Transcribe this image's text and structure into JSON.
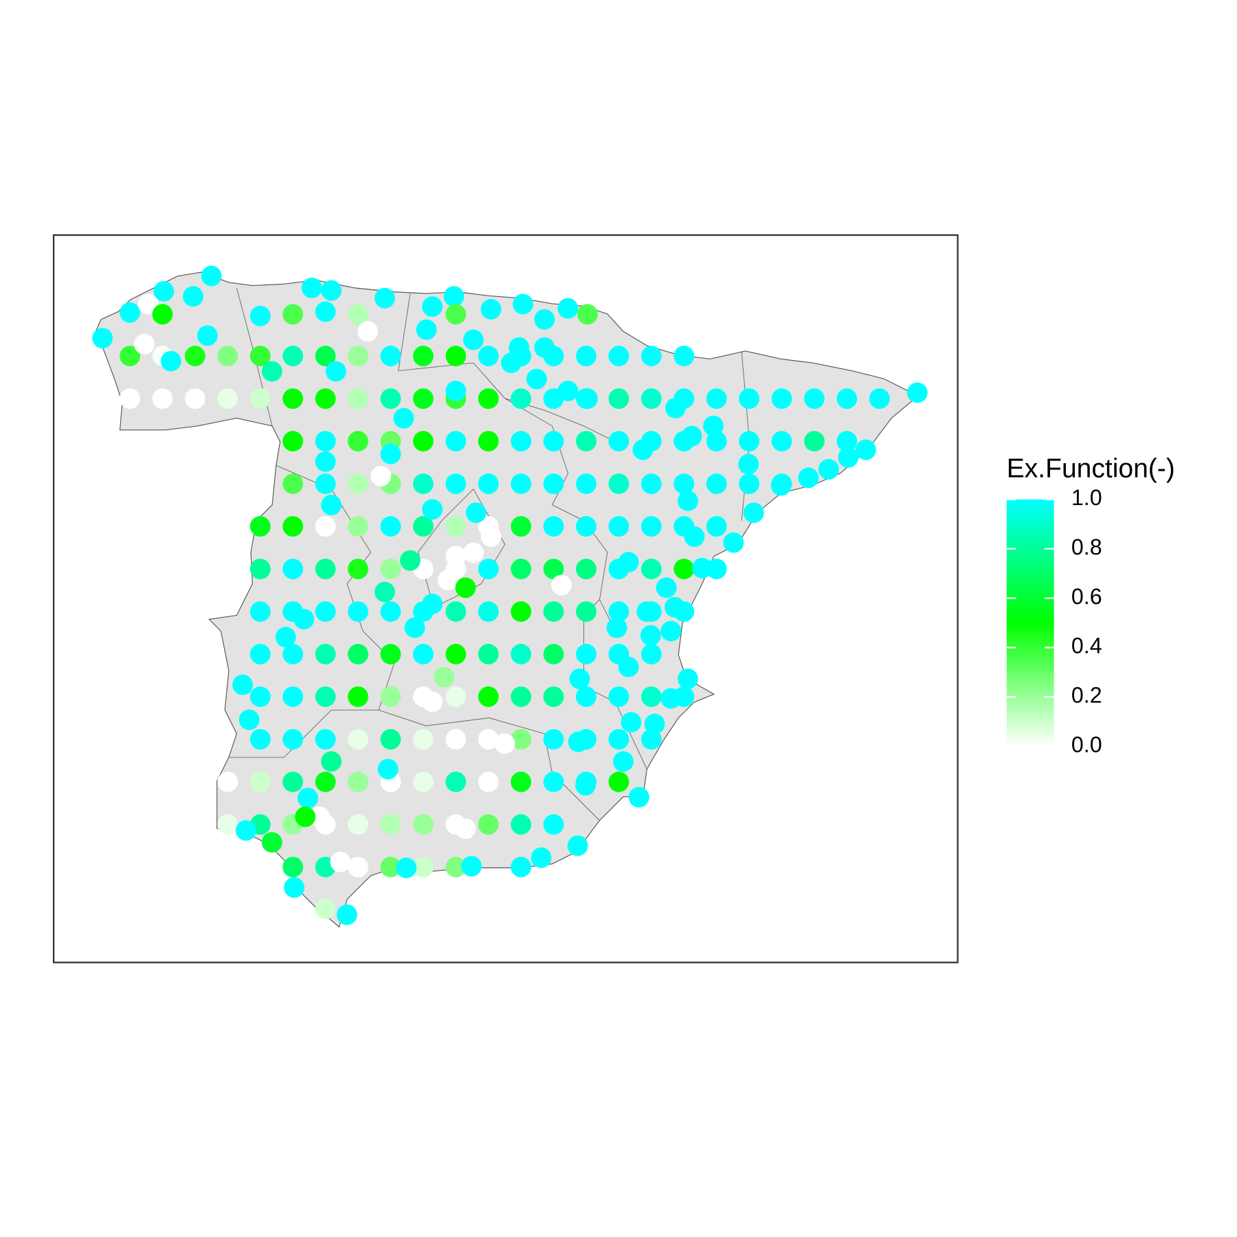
{
  "chart_data": {
    "type": "scatter",
    "xlim": [
      -9.92,
      3.95
    ],
    "ylim": [
      35.63,
      44.17
    ],
    "colorbar": {
      "title": "Ex.Function(-)",
      "limits": [
        0,
        1
      ],
      "colors": [
        "#ffffff",
        "#00ff00",
        "#00ffff"
      ],
      "ticks": [
        {
          "value": 0,
          "label": "0.0"
        },
        0.2,
        0.4,
        0.6,
        0.8,
        {
          "value": 1,
          "label": "1.0"
        }
      ]
    },
    "x": [
      -8.75,
      -8.25,
      -7.75,
      -7.25,
      -6.75,
      -6.25,
      -5.75,
      -5.25,
      -4.75,
      -4.25,
      -3.75,
      -3.25,
      -2.75,
      -2.25,
      -1.75,
      -1.25,
      -0.75,
      -0.25,
      -8.75,
      -8.25,
      -7.75,
      -7.25,
      -6.75,
      -6.25,
      -5.75,
      -5.25,
      -4.75,
      -4.25,
      -3.75,
      -3.25,
      -2.75,
      -2.25,
      -1.75,
      -1.25,
      -0.75,
      -0.25,
      0.25,
      0.75,
      1.25,
      1.75,
      2.25,
      2.75,
      -6.25,
      -5.75,
      -5.25,
      -4.75,
      -4.25,
      -3.75,
      -3.25,
      -2.75,
      -2.25,
      -1.75,
      -1.25,
      -0.75,
      -0.25,
      0.25,
      0.75,
      1.25,
      1.75,
      2.25,
      -6.25,
      -5.75,
      -5.25,
      -4.75,
      -4.25,
      -3.75,
      -3.25,
      -2.75,
      -2.25,
      -1.75,
      -1.25,
      -0.75,
      -0.25,
      0.25,
      0.75,
      1.25,
      -6.75,
      -6.25,
      -5.75,
      -5.25,
      -4.75,
      -4.25,
      -3.75,
      -3.25,
      -2.75,
      -2.25,
      -1.75,
      -1.25,
      -0.75,
      -0.25,
      0.25,
      -6.75,
      -6.25,
      -5.75,
      -5.25,
      -4.75,
      -4.25,
      -3.75,
      -3.25,
      -2.75,
      -2.25,
      -1.75,
      -1.25,
      -0.75,
      -0.25,
      0.25,
      -6.75,
      -6.25,
      -5.75,
      -5.25,
      -4.75,
      -4.25,
      -3.75,
      -3.25,
      -2.75,
      -2.25,
      -1.75,
      -1.25,
      -0.75,
      -0.25,
      -6.75,
      -6.25,
      -5.75,
      -5.25,
      -4.75,
      -4.25,
      -3.75,
      -3.25,
      -2.75,
      -2.25,
      -1.75,
      -1.25,
      -0.75,
      -6.75,
      -6.25,
      -5.75,
      -5.25,
      -4.75,
      -4.25,
      -3.75,
      -3.25,
      -2.75,
      -2.25,
      -1.75,
      -1.25,
      -0.75,
      -0.25,
      -6.75,
      -6.25,
      -5.75,
      -5.25,
      -4.75,
      -4.25,
      -3.75,
      -3.25,
      -2.75,
      -2.25,
      -1.75,
      -1.25,
      -0.75,
      -7.25,
      -6.75,
      -6.25,
      -5.75,
      -5.25,
      -4.75,
      -4.25,
      -3.75,
      -3.25,
      -2.75,
      -2.25,
      -1.75,
      -1.25,
      -7.25,
      -6.75,
      -6.25,
      -5.75,
      -5.25,
      -4.75,
      -4.25,
      -3.75,
      -3.25,
      -2.75,
      -2.25,
      -6.25,
      -5.75,
      -5.25,
      -4.75,
      -4.25,
      -3.75,
      -2.75,
      -9.17,
      -8.75,
      -8.23,
      -7.78,
      -7.5,
      -8.47,
      -8.25,
      -8.53,
      -8.12,
      -7.56,
      -6.75,
      -6.25,
      -5.96,
      -5.66,
      -5.75,
      -5.25,
      -5.1,
      -4.84,
      -4.2,
      -4.11,
      -3.78,
      -3.75,
      -3.48,
      -3.21,
      -2.72,
      -2.39,
      -2.03,
      -1.73,
      -2.78,
      -2.39,
      -2.9,
      -2.51,
      -2.03,
      -1.73,
      -6.57,
      -5.59,
      -3.75,
      -4.55,
      -5.75,
      -4.75,
      -4.9,
      -5.66,
      -4.11,
      -3.44,
      -3.21,
      -3.48,
      -3.75,
      -3.87,
      -3.6,
      -4.45,
      -4.84,
      -4.38,
      -4.11,
      -2.13,
      -1.1,
      -0.52,
      0.03,
      -0.82,
      -0.39,
      -0.45,
      -1.28,
      -1.1,
      -0.76,
      -0.19,
      -0.45,
      -1.06,
      -0.7,
      -1.18,
      -0.94,
      -1.87,
      -6.08,
      -6.36,
      -7.02,
      -6.92,
      -5.66,
      -4.79,
      -6.02,
      -5.84,
      -6.06,
      -6.97,
      -6.57,
      -6.23,
      -5.75,
      -5.42,
      -5.52,
      -4.51,
      -3.51,
      -2.44,
      -1.88,
      -3.6,
      -3.93,
      -4.11,
      -3,
      -0.19,
      -0.09,
      0.51,
      0.82,
      1.24,
      1.66,
      1.97,
      2.27,
      2.54,
      0.2,
      -0.13,
      -0.88,
      -0.38,
      0.74,
      3.33,
      -1.85,
      -1.76
    ],
    "y": [
      42.75,
      42.75,
      42.75,
      42.75,
      42.75,
      42.75,
      42.75,
      42.75,
      42.75,
      42.75,
      42.75,
      42.75,
      42.75,
      42.75,
      42.75,
      42.75,
      42.75,
      42.75,
      42.25,
      42.25,
      42.25,
      42.25,
      42.25,
      42.25,
      42.25,
      42.25,
      42.25,
      42.25,
      42.25,
      42.25,
      42.25,
      42.25,
      42.25,
      42.25,
      42.25,
      42.25,
      42.25,
      42.25,
      42.25,
      42.25,
      42.25,
      42.25,
      41.75,
      41.75,
      41.75,
      41.75,
      41.75,
      41.75,
      41.75,
      41.75,
      41.75,
      41.75,
      41.75,
      41.75,
      41.75,
      41.75,
      41.75,
      41.75,
      41.75,
      41.75,
      41.25,
      41.25,
      41.25,
      41.25,
      41.25,
      41.25,
      41.25,
      41.25,
      41.25,
      41.25,
      41.25,
      41.25,
      41.25,
      41.25,
      41.25,
      41.25,
      40.75,
      40.75,
      40.75,
      40.75,
      40.75,
      40.75,
      40.75,
      40.75,
      40.75,
      40.75,
      40.75,
      40.75,
      40.75,
      40.75,
      40.75,
      40.25,
      40.25,
      40.25,
      40.25,
      40.25,
      40.25,
      40.25,
      40.25,
      40.25,
      40.25,
      40.25,
      40.25,
      40.25,
      40.25,
      40.25,
      39.75,
      39.75,
      39.75,
      39.75,
      39.75,
      39.75,
      39.75,
      39.75,
      39.75,
      39.75,
      39.75,
      39.75,
      39.75,
      39.75,
      39.25,
      39.25,
      39.25,
      39.25,
      39.25,
      39.25,
      39.25,
      39.25,
      39.25,
      39.25,
      39.25,
      39.25,
      39.25,
      38.75,
      38.75,
      38.75,
      38.75,
      38.75,
      38.75,
      38.75,
      38.75,
      38.75,
      38.75,
      38.75,
      38.75,
      38.75,
      38.75,
      38.25,
      38.25,
      38.25,
      38.25,
      38.25,
      38.25,
      38.25,
      38.25,
      38.25,
      38.25,
      38.25,
      38.25,
      38.25,
      37.75,
      37.75,
      37.75,
      37.75,
      37.75,
      37.75,
      37.75,
      37.75,
      37.75,
      37.75,
      37.75,
      37.75,
      37.75,
      37.25,
      37.25,
      37.25,
      37.25,
      37.25,
      37.25,
      37.25,
      37.25,
      37.25,
      37.25,
      37.25,
      36.75,
      36.75,
      36.75,
      36.75,
      36.75,
      36.75,
      36.75,
      42.96,
      43.26,
      43.51,
      43.45,
      43.69,
      43.36,
      43.24,
      42.89,
      42.69,
      42.99,
      43.22,
      43.24,
      43.55,
      43.52,
      43.27,
      43.24,
      43.04,
      43.43,
      43.06,
      43.33,
      43.45,
      43.24,
      42.94,
      43.3,
      43.36,
      43.18,
      43.31,
      43.24,
      42.85,
      42.85,
      42.67,
      42.48,
      42.34,
      42.25,
      42.57,
      42.57,
      42.34,
      42.02,
      41.51,
      41.6,
      41.34,
      41,
      40.95,
      40.91,
      40.63,
      40.44,
      40.4,
      40.12,
      40.03,
      40.35,
      39.98,
      39.56,
      39.84,
      40.06,
      40.33,
      40.03,
      40.26,
      39.75,
      39.8,
      39.52,
      39.56,
      39.1,
      39.47,
      38.96,
      38.73,
      38.45,
      38.43,
      37.99,
      37.57,
      38.22,
      39.66,
      39.45,
      38.89,
      38.48,
      37.99,
      37.9,
      37.56,
      37.34,
      37.34,
      37.18,
      37.04,
      36.51,
      36.26,
      36.19,
      36.81,
      36.74,
      36.76,
      36.86,
      37,
      37.2,
      38.98,
      38.69,
      38.2,
      41.05,
      40.63,
      40.56,
      40.91,
      41.23,
      41.32,
      41.42,
      41.56,
      41.65,
      41.93,
      41.81,
      41.65,
      42.14,
      41.48,
      42.32,
      38.96,
      37.71
    ],
    "values": [
      0.4,
      0.02,
      0.45,
      0.25,
      0.4,
      0.85,
      0.65,
      0.2,
      1,
      0.55,
      0.5,
      1,
      1,
      1,
      1,
      1,
      1,
      1,
      0,
      0,
      0,
      0.05,
      0.1,
      0.5,
      0.5,
      0.15,
      0.85,
      0.55,
      0.4,
      0.5,
      0.9,
      1,
      1,
      0.85,
      0.9,
      1,
      1,
      1,
      1,
      1,
      1,
      1,
      0.5,
      1,
      0.4,
      0.3,
      0.5,
      1,
      0.5,
      1,
      1,
      0.85,
      1,
      1,
      1,
      1,
      1,
      1,
      0.8,
      1,
      0.35,
      1,
      0.15,
      0.25,
      0.9,
      1,
      1,
      1,
      1,
      1,
      0.9,
      1,
      1,
      1,
      1,
      1,
      0.55,
      0.5,
      0,
      0.2,
      1,
      0.8,
      0.15,
      0,
      0.6,
      1,
      1,
      1,
      1,
      1,
      1,
      0.8,
      1,
      0.8,
      0.45,
      0.2,
      0,
      0,
      1,
      0.7,
      0.65,
      0.75,
      1,
      0.85,
      0.5,
      1,
      1,
      1,
      1,
      1,
      1,
      1,
      0.85,
      0.95,
      0.5,
      0.8,
      0.8,
      1,
      1,
      1,
      1,
      1,
      0.85,
      0.7,
      0.55,
      1,
      0.5,
      0.8,
      0.9,
      0.7,
      1,
      1,
      1,
      1,
      1,
      0.85,
      0.5,
      0.2,
      0,
      0.05,
      0.5,
      0.8,
      0.8,
      1,
      1,
      0.9,
      1,
      1,
      1,
      1,
      0.05,
      0.8,
      0.05,
      0,
      0,
      0.25,
      1,
      1,
      1,
      1,
      0,
      0.1,
      0.8,
      0.55,
      0.2,
      0,
      0.05,
      0.85,
      0,
      0.55,
      1,
      1,
      0.5,
      0.05,
      0.8,
      0.2,
      0,
      0.05,
      0.15,
      0.2,
      0,
      0.3,
      0.85,
      1,
      0.7,
      0.85,
      0,
      0.3,
      0.1,
      0.25,
      1,
      1,
      1,
      1,
      1,
      1,
      0,
      0.5,
      0,
      1,
      1,
      1,
      0.35,
      1,
      1,
      1,
      0.15,
      0,
      1,
      1,
      1,
      1,
      0.35,
      1,
      1,
      1,
      1,
      1,
      0.35,
      1,
      1,
      1,
      1,
      1,
      1,
      0.85,
      1,
      1,
      1,
      1,
      1,
      0,
      1,
      1,
      1,
      0,
      0,
      0,
      0,
      0.5,
      0.8,
      0.85,
      1,
      1,
      0,
      1,
      1,
      1,
      1,
      1,
      1,
      1,
      1,
      1,
      1,
      1,
      1,
      1,
      1,
      1,
      1,
      1,
      1,
      1,
      1,
      0.8,
      1,
      1,
      0,
      0.5,
      1,
      0.6,
      1,
      0.1,
      1,
      0,
      1,
      1,
      1,
      1,
      0,
      0.2,
      0,
      0,
      1,
      1,
      1,
      1,
      1,
      1,
      1,
      1,
      1,
      1,
      1,
      1,
      1,
      1,
      1,
      1,
      1
    ]
  }
}
